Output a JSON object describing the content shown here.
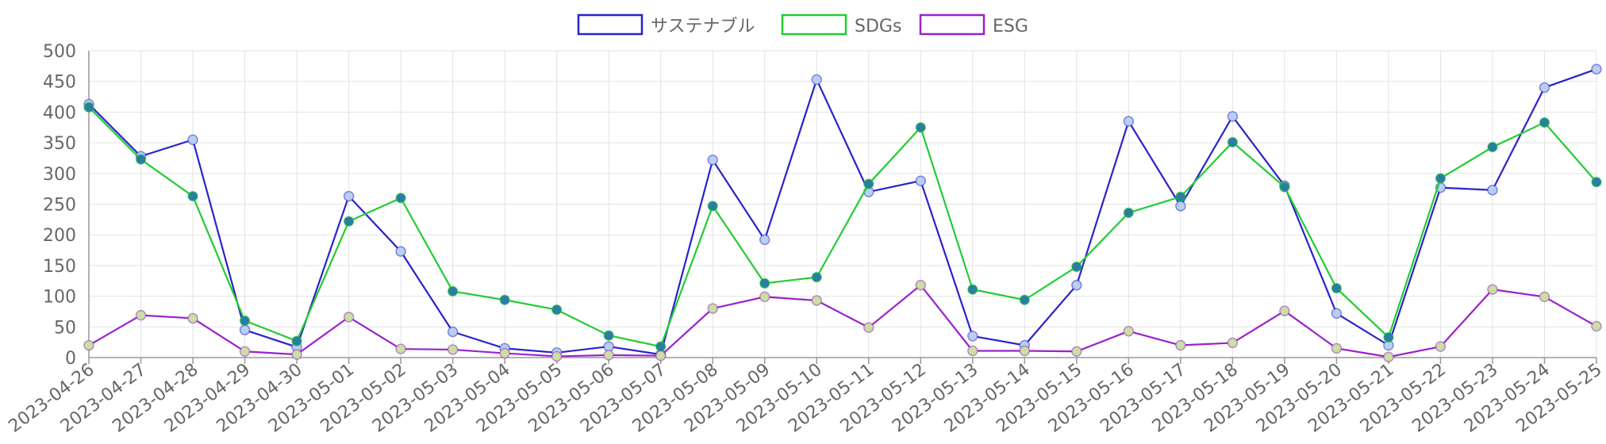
{
  "chart_data": {
    "type": "line",
    "title": "",
    "xlabel": "",
    "ylabel": "",
    "ylim": [
      0,
      500
    ],
    "yticks": [
      0,
      50,
      100,
      150,
      200,
      250,
      300,
      350,
      400,
      450,
      500
    ],
    "grid": true,
    "legend_position": "top-center",
    "categories": [
      "2023-04-26",
      "2023-04-27",
      "2023-04-28",
      "2023-04-29",
      "2023-04-30",
      "2023-05-01",
      "2023-05-02",
      "2023-05-03",
      "2023-05-04",
      "2023-05-05",
      "2023-05-06",
      "2023-05-07",
      "2023-05-08",
      "2023-05-09",
      "2023-05-10",
      "2023-05-11",
      "2023-05-12",
      "2023-05-13",
      "2023-05-14",
      "2023-05-15",
      "2023-05-16",
      "2023-05-17",
      "2023-05-18",
      "2023-05-19",
      "2023-05-20",
      "2023-05-21",
      "2023-05-22",
      "2023-05-23",
      "2023-05-24",
      "2023-05-25"
    ],
    "series": [
      {
        "name": "サステナブル",
        "color": "#2a22cc",
        "marker_color": "#b8d0f0",
        "values": [
          413,
          328,
          355,
          45,
          17,
          263,
          173,
          42,
          15,
          8,
          18,
          5,
          322,
          192,
          453,
          270,
          288,
          35,
          20,
          118,
          385,
          247,
          393,
          280,
          72,
          20,
          277,
          273,
          440,
          470
        ]
      },
      {
        "name": "SDGs",
        "color": "#22cc33",
        "marker_color": "#2a7fa0",
        "values": [
          408,
          323,
          263,
          60,
          27,
          222,
          260,
          108,
          94,
          78,
          36,
          18,
          247,
          121,
          131,
          283,
          375,
          111,
          94,
          148,
          236,
          262,
          351,
          278,
          113,
          33,
          292,
          343,
          383,
          286
        ]
      },
      {
        "name": "ESG",
        "color": "#9a22cc",
        "marker_color": "#c8e0a0",
        "values": [
          20,
          69,
          64,
          10,
          5,
          66,
          14,
          13,
          7,
          2,
          4,
          3,
          80,
          99,
          93,
          49,
          118,
          11,
          11,
          10,
          43,
          20,
          24,
          76,
          15,
          1,
          18,
          111,
          99,
          51
        ]
      }
    ]
  }
}
